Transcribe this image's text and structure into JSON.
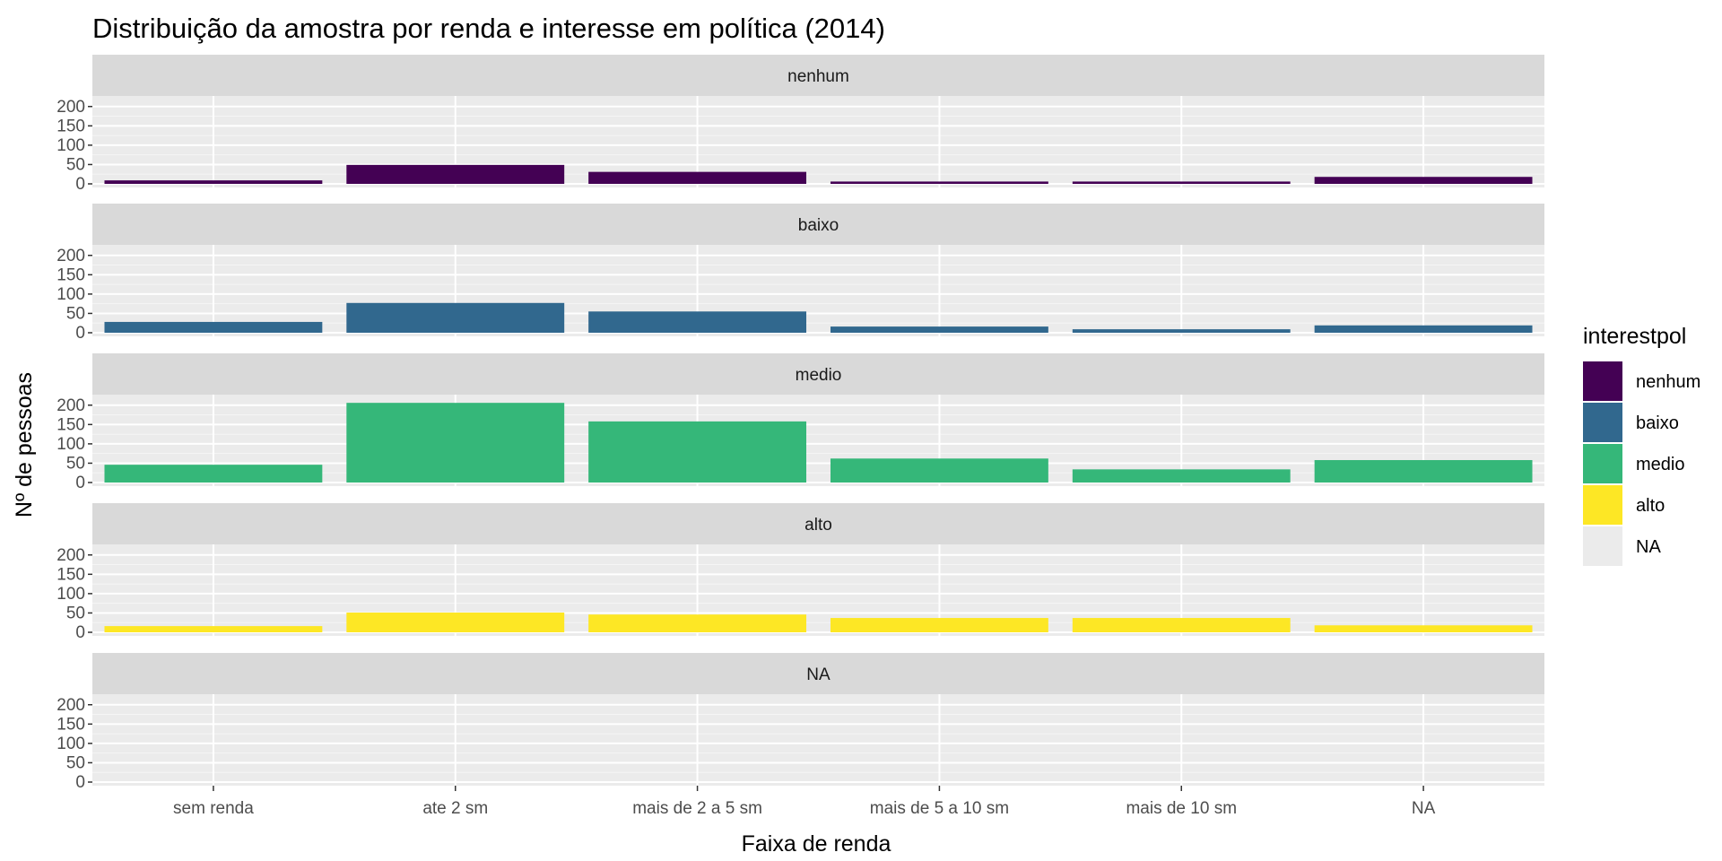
{
  "chart_data": {
    "type": "bar",
    "title": "Distribuição da amostra por renda e interesse em política (2014)",
    "xlabel": "Faixa de renda",
    "ylabel": "Nº de pessoas",
    "categories": [
      "sem renda",
      "ate 2 sm",
      "mais de 2 a 5 sm",
      "mais de 5 a 10 sm",
      "mais de 10 sm",
      "NA"
    ],
    "yticks": [
      "0",
      "50",
      "100",
      "150",
      "200"
    ],
    "ylim": [
      0,
      218
    ],
    "grid": true,
    "legend_position": "right",
    "legend_title": "interestpol",
    "facets": [
      {
        "name": "nenhum",
        "color": "#440154",
        "values": [
          9,
          49,
          31,
          6,
          6,
          18
        ]
      },
      {
        "name": "baixo",
        "color": "#31688e",
        "values": [
          28,
          77,
          55,
          16,
          9,
          19
        ]
      },
      {
        "name": "medio",
        "color": "#35b779",
        "values": [
          46,
          206,
          158,
          62,
          34,
          58
        ]
      },
      {
        "name": "alto",
        "color": "#fde725",
        "values": [
          16,
          51,
          46,
          37,
          37,
          18
        ]
      },
      {
        "name": "NA",
        "color": "#ebebeb",
        "values": [
          0,
          0,
          0,
          0,
          0,
          0
        ]
      }
    ],
    "legend_items": [
      {
        "label": "nenhum",
        "color": "#440154"
      },
      {
        "label": "baixo",
        "color": "#31688e"
      },
      {
        "label": "medio",
        "color": "#35b779"
      },
      {
        "label": "alto",
        "color": "#fde725"
      },
      {
        "label": "NA",
        "color": "#ebebeb"
      }
    ]
  }
}
